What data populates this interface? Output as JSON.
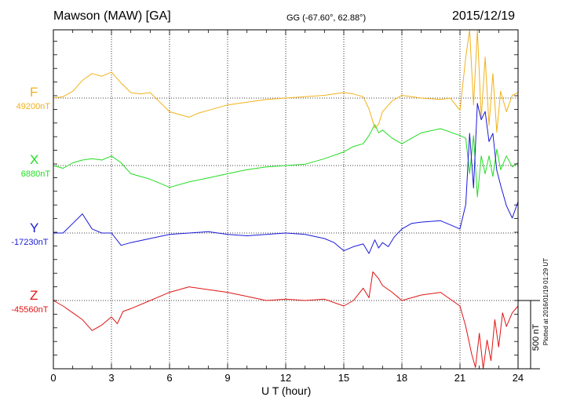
{
  "header": {
    "station": "Mawson (MAW)  [GA]",
    "coordinates": "GG (-67.60°,  62.88°)",
    "date": "2015/12/19"
  },
  "footer": {
    "plotted_note": "Plotted at 2016/01/19 01:29 UT"
  },
  "chart_data": {
    "type": "line",
    "xlabel": "U T (hour)",
    "xlim": [
      0,
      24
    ],
    "xticks": [
      "0",
      "3",
      "6",
      "9",
      "12",
      "15",
      "18",
      "21",
      "24"
    ],
    "scale_bar": {
      "label": "500 nT",
      "value_nT": 500
    },
    "grid": "dotted",
    "series": [
      {
        "name": "F",
        "baseline_label": "49200nT",
        "baseline_nT": 49200,
        "color": "#f2b21a",
        "x": [
          0,
          0.5,
          1,
          1.5,
          2,
          2.5,
          3,
          3.5,
          4,
          4.5,
          5,
          5.5,
          6,
          6.5,
          7,
          7.5,
          8,
          9,
          10,
          11,
          12,
          13,
          14,
          15,
          15.5,
          16,
          16.3,
          16.6,
          16.8,
          17,
          17.5,
          18,
          19,
          20,
          20.5,
          21,
          21.3,
          21.5,
          21.7,
          21.9,
          22.1,
          22.3,
          22.5,
          22.7,
          22.9,
          23.1,
          23.4,
          23.7,
          24
        ],
        "y": [
          49200,
          49210,
          49250,
          49330,
          49380,
          49360,
          49390,
          49310,
          49240,
          49230,
          49240,
          49170,
          49100,
          49080,
          49060,
          49090,
          49110,
          49150,
          49170,
          49190,
          49200,
          49210,
          49220,
          49240,
          49230,
          49210,
          49120,
          48980,
          49010,
          49100,
          49180,
          49220,
          49200,
          49190,
          49200,
          49110,
          49500,
          49800,
          49150,
          49700,
          49050,
          49500,
          49000,
          49380,
          48950,
          49250,
          49100,
          49220,
          49240
        ]
      },
      {
        "name": "X",
        "baseline_label": "6880nT",
        "baseline_nT": 6880,
        "color": "#22dd22",
        "x": [
          0,
          0.5,
          1,
          1.5,
          2,
          2.5,
          3,
          3.5,
          4,
          4.5,
          5,
          5.5,
          6,
          7,
          8,
          9,
          10,
          11,
          12,
          13,
          14,
          15,
          15.5,
          16,
          16.3,
          16.6,
          16.8,
          17,
          17.5,
          18,
          19,
          20,
          21,
          21.3,
          21.5,
          21.7,
          21.9,
          22.1,
          22.3,
          22.5,
          22.7,
          22.9,
          23.1,
          23.4,
          23.7,
          24
        ],
        "y": [
          6880,
          6860,
          6900,
          6920,
          6930,
          6920,
          6950,
          6900,
          6820,
          6800,
          6780,
          6750,
          6720,
          6760,
          6790,
          6820,
          6850,
          6870,
          6880,
          6890,
          6930,
          6980,
          7020,
          7040,
          7100,
          7180,
          7120,
          7140,
          7080,
          7040,
          7120,
          7150,
          7100,
          7080,
          6820,
          7100,
          6650,
          6950,
          6820,
          6950,
          6800,
          7000,
          6850,
          6950,
          6870,
          6900
        ]
      },
      {
        "name": "Y",
        "baseline_label": "-17230nT",
        "baseline_nT": -17230,
        "color": "#1a1ad8",
        "x": [
          0,
          0.5,
          1,
          1.5,
          2,
          2.5,
          3,
          3.5,
          4,
          5,
          6,
          7,
          8,
          9,
          10,
          11,
          12,
          13,
          14,
          14.5,
          15,
          15.5,
          16,
          16.3,
          16.6,
          16.8,
          17,
          17.3,
          17.6,
          18,
          18.5,
          19,
          20,
          21,
          21.3,
          21.5,
          21.7,
          21.9,
          22.1,
          22.3,
          22.5,
          22.7,
          22.9,
          23.1,
          23.4,
          23.7,
          24
        ],
        "y": [
          -17230,
          -17230,
          -17160,
          -17090,
          -17200,
          -17230,
          -17230,
          -17320,
          -17300,
          -17270,
          -17240,
          -17230,
          -17220,
          -17240,
          -17250,
          -17240,
          -17230,
          -17240,
          -17270,
          -17300,
          -17360,
          -17330,
          -17310,
          -17380,
          -17280,
          -17340,
          -17300,
          -17330,
          -17260,
          -17200,
          -17160,
          -17150,
          -17140,
          -17200,
          -17020,
          -16500,
          -16900,
          -16280,
          -16400,
          -16340,
          -16560,
          -16500,
          -16770,
          -16880,
          -17030,
          -17120,
          -17000
        ]
      },
      {
        "name": "Z",
        "baseline_label": "-45560nT",
        "baseline_nT": -45560,
        "color": "#e01414",
        "x": [
          0,
          0.5,
          1,
          1.5,
          2,
          2.5,
          3,
          3.3,
          3.6,
          4,
          5,
          6,
          7,
          8,
          9,
          10,
          11,
          12,
          13,
          14,
          15,
          15.5,
          16,
          16.3,
          16.5,
          16.8,
          17,
          17.5,
          18,
          19,
          20,
          21,
          21.3,
          21.6,
          21.8,
          22,
          22.2,
          22.4,
          22.6,
          22.8,
          23,
          23.2,
          23.4,
          23.7,
          24
        ],
        "y": [
          -45560,
          -45600,
          -45650,
          -45700,
          -45780,
          -45740,
          -45680,
          -45730,
          -45640,
          -45620,
          -45560,
          -45500,
          -45460,
          -45480,
          -45500,
          -45530,
          -45560,
          -45550,
          -45560,
          -45550,
          -45600,
          -45560,
          -45470,
          -45540,
          -45350,
          -45400,
          -45450,
          -45500,
          -45560,
          -45520,
          -45500,
          -45600,
          -45750,
          -45950,
          -46050,
          -45800,
          -46100,
          -45850,
          -46000,
          -45700,
          -45900,
          -45650,
          -45750,
          -45650,
          -45600
        ]
      }
    ]
  }
}
